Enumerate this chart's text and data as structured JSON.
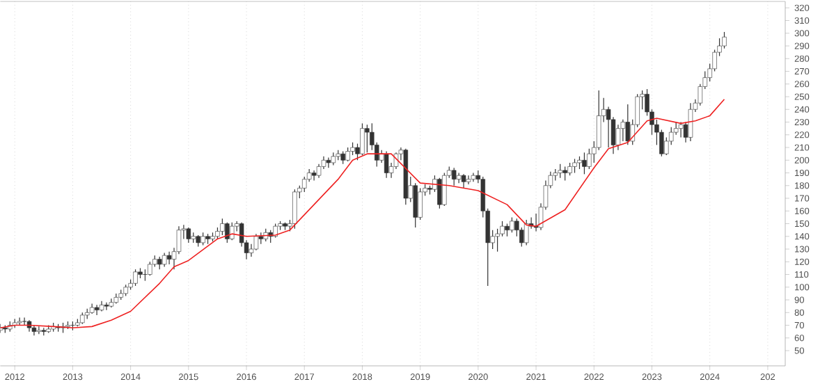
{
  "chart_data": {
    "type": "candlestick",
    "color": "#333333",
    "grid": "x",
    "xlim": [
      "2011-10-01",
      "2025-04-20"
    ],
    "ylim": [
      38,
      325
    ],
    "xticks": [
      "2012",
      "2013",
      "2014",
      "2015",
      "2016",
      "2017",
      "2018",
      "2019",
      "2020",
      "2021",
      "2022",
      "2023",
      "2024",
      {
        "value": "2025",
        "label": "202"
      }
    ],
    "yticks": [
      50,
      60,
      70,
      80,
      90,
      100,
      110,
      120,
      130,
      140,
      150,
      160,
      170,
      180,
      190,
      200,
      210,
      220,
      230,
      240,
      250,
      260,
      270,
      280,
      290,
      300,
      310,
      320
    ],
    "x": [
      "2011-10",
      "2011-11",
      "2011-12",
      "2012-01",
      "2012-02",
      "2012-03",
      "2012-04",
      "2012-05",
      "2012-06",
      "2012-07",
      "2012-08",
      "2012-09",
      "2012-10",
      "2012-11",
      "2012-12",
      "2013-01",
      "2013-02",
      "2013-03",
      "2013-04",
      "2013-05",
      "2013-06",
      "2013-07",
      "2013-08",
      "2013-09",
      "2013-10",
      "2013-11",
      "2013-12",
      "2014-01",
      "2014-02",
      "2014-03",
      "2014-04",
      "2014-05",
      "2014-06",
      "2014-07",
      "2014-08",
      "2014-09",
      "2014-10",
      "2014-11",
      "2014-12",
      "2015-01",
      "2015-02",
      "2015-03",
      "2015-04",
      "2015-05",
      "2015-06",
      "2015-07",
      "2015-08",
      "2015-09",
      "2015-10",
      "2015-11",
      "2015-12",
      "2016-01",
      "2016-02",
      "2016-03",
      "2016-04",
      "2016-05",
      "2016-06",
      "2016-07",
      "2016-08",
      "2016-09",
      "2016-10",
      "2016-11",
      "2016-12",
      "2017-01",
      "2017-02",
      "2017-03",
      "2017-04",
      "2017-05",
      "2017-06",
      "2017-07",
      "2017-08",
      "2017-09",
      "2017-10",
      "2017-11",
      "2017-12",
      "2018-01",
      "2018-02",
      "2018-03",
      "2018-04",
      "2018-05",
      "2018-06",
      "2018-07",
      "2018-08",
      "2018-09",
      "2018-10",
      "2018-11",
      "2018-12",
      "2019-01",
      "2019-02",
      "2019-03",
      "2019-04",
      "2019-05",
      "2019-06",
      "2019-07",
      "2019-08",
      "2019-09",
      "2019-10",
      "2019-11",
      "2019-12",
      "2020-01",
      "2020-02",
      "2020-03",
      "2020-04",
      "2020-05",
      "2020-06",
      "2020-07",
      "2020-08",
      "2020-09",
      "2020-10",
      "2020-11",
      "2020-12",
      "2021-01",
      "2021-02",
      "2021-03",
      "2021-04",
      "2021-05",
      "2021-06",
      "2021-07",
      "2021-08",
      "2021-09",
      "2021-10",
      "2021-11",
      "2021-12",
      "2022-01",
      "2022-02",
      "2022-03",
      "2022-04",
      "2022-05",
      "2022-06",
      "2022-07",
      "2022-08",
      "2022-09",
      "2022-10",
      "2022-11",
      "2022-12",
      "2023-01",
      "2023-02",
      "2023-03",
      "2023-04",
      "2023-05",
      "2023-06",
      "2023-07",
      "2023-08",
      "2023-09",
      "2023-10",
      "2023-11",
      "2023-12",
      "2024-01",
      "2024-02",
      "2024-03",
      "2024-04"
    ],
    "ohlc": [
      [
        66,
        71,
        64,
        68
      ],
      [
        68,
        70,
        64,
        67
      ],
      [
        67,
        73,
        65,
        70
      ],
      [
        70,
        75,
        68,
        72
      ],
      [
        72,
        76,
        70,
        73
      ],
      [
        73,
        76,
        70,
        73
      ],
      [
        73,
        74,
        65,
        68
      ],
      [
        68,
        70,
        62,
        65
      ],
      [
        65,
        69,
        63,
        66
      ],
      [
        66,
        68,
        62,
        65
      ],
      [
        65,
        70,
        64,
        67
      ],
      [
        67,
        72,
        65,
        69
      ],
      [
        69,
        71,
        65,
        68
      ],
      [
        68,
        72,
        64,
        69
      ],
      [
        69,
        73,
        67,
        70
      ],
      [
        70,
        73,
        66,
        70
      ],
      [
        70,
        75,
        69,
        72
      ],
      [
        72,
        80,
        71,
        78
      ],
      [
        78,
        83,
        75,
        80
      ],
      [
        80,
        87,
        79,
        84
      ],
      [
        84,
        86,
        78,
        82
      ],
      [
        82,
        89,
        81,
        86
      ],
      [
        86,
        88,
        82,
        85
      ],
      [
        85,
        91,
        84,
        88
      ],
      [
        88,
        95,
        87,
        92
      ],
      [
        92,
        98,
        90,
        95
      ],
      [
        95,
        102,
        93,
        100
      ],
      [
        100,
        106,
        98,
        103
      ],
      [
        103,
        114,
        101,
        112
      ],
      [
        112,
        115,
        107,
        110
      ],
      [
        110,
        114,
        105,
        110
      ],
      [
        110,
        120,
        109,
        118
      ],
      [
        118,
        125,
        116,
        122
      ],
      [
        122,
        124,
        114,
        118
      ],
      [
        118,
        127,
        116,
        125
      ],
      [
        125,
        128,
        118,
        122
      ],
      [
        122,
        131,
        114,
        128
      ],
      [
        128,
        148,
        126,
        145
      ],
      [
        145,
        149,
        138,
        146
      ],
      [
        146,
        147,
        135,
        138
      ],
      [
        138,
        143,
        135,
        140
      ],
      [
        140,
        141,
        132,
        135
      ],
      [
        135,
        143,
        133,
        140
      ],
      [
        140,
        142,
        134,
        138
      ],
      [
        138,
        143,
        136,
        140
      ],
      [
        140,
        147,
        138,
        144
      ],
      [
        144,
        154,
        141,
        150
      ],
      [
        150,
        151,
        135,
        138
      ],
      [
        138,
        151,
        137,
        148
      ],
      [
        148,
        152,
        144,
        150
      ],
      [
        150,
        151,
        132,
        135
      ],
      [
        135,
        137,
        122,
        127
      ],
      [
        127,
        134,
        124,
        130
      ],
      [
        130,
        142,
        129,
        140
      ],
      [
        140,
        143,
        134,
        138
      ],
      [
        138,
        146,
        136,
        143
      ],
      [
        143,
        145,
        135,
        140
      ],
      [
        140,
        150,
        139,
        148
      ],
      [
        148,
        152,
        145,
        150
      ],
      [
        150,
        151,
        145,
        148
      ],
      [
        148,
        153,
        144,
        150
      ],
      [
        150,
        177,
        146,
        175
      ],
      [
        175,
        180,
        170,
        178
      ],
      [
        178,
        187,
        175,
        185
      ],
      [
        185,
        193,
        183,
        190
      ],
      [
        190,
        192,
        184,
        188
      ],
      [
        188,
        197,
        186,
        195
      ],
      [
        195,
        203,
        193,
        200
      ],
      [
        200,
        202,
        194,
        198
      ],
      [
        198,
        206,
        196,
        203
      ],
      [
        203,
        208,
        200,
        205
      ],
      [
        205,
        207,
        197,
        200
      ],
      [
        200,
        210,
        199,
        207
      ],
      [
        207,
        214,
        204,
        210
      ],
      [
        210,
        213,
        200,
        205
      ],
      [
        205,
        229,
        204,
        225
      ],
      [
        225,
        228,
        206,
        222
      ],
      [
        222,
        229,
        208,
        212
      ],
      [
        212,
        214,
        195,
        200
      ],
      [
        200,
        208,
        198,
        205
      ],
      [
        205,
        207,
        186,
        190
      ],
      [
        190,
        198,
        186,
        195
      ],
      [
        195,
        206,
        193,
        205
      ],
      [
        205,
        210,
        200,
        208
      ],
      [
        208,
        209,
        165,
        170
      ],
      [
        170,
        187,
        167,
        180
      ],
      [
        180,
        182,
        147,
        155
      ],
      [
        155,
        178,
        153,
        175
      ],
      [
        175,
        181,
        172,
        178
      ],
      [
        178,
        180,
        173,
        177
      ],
      [
        177,
        188,
        175,
        185
      ],
      [
        185,
        186,
        162,
        165
      ],
      [
        165,
        190,
        164,
        188
      ],
      [
        188,
        195,
        186,
        192
      ],
      [
        192,
        194,
        180,
        185
      ],
      [
        185,
        190,
        182,
        188
      ],
      [
        188,
        189,
        178,
        183
      ],
      [
        183,
        188,
        181,
        185
      ],
      [
        185,
        190,
        183,
        188
      ],
      [
        188,
        192,
        182,
        185
      ],
      [
        185,
        187,
        155,
        160
      ],
      [
        160,
        162,
        101,
        135
      ],
      [
        135,
        145,
        130,
        140
      ],
      [
        140,
        146,
        128,
        142
      ],
      [
        142,
        152,
        140,
        148
      ],
      [
        148,
        150,
        140,
        145
      ],
      [
        145,
        155,
        143,
        152
      ],
      [
        152,
        154,
        140,
        145
      ],
      [
        145,
        147,
        132,
        135
      ],
      [
        135,
        153,
        133,
        150
      ],
      [
        150,
        155,
        146,
        148
      ],
      [
        148,
        158,
        144,
        147
      ],
      [
        147,
        166,
        145,
        163
      ],
      [
        163,
        184,
        161,
        180
      ],
      [
        180,
        191,
        178,
        188
      ],
      [
        188,
        193,
        184,
        190
      ],
      [
        190,
        197,
        186,
        192
      ],
      [
        192,
        195,
        184,
        190
      ],
      [
        190,
        198,
        188,
        195
      ],
      [
        195,
        201,
        190,
        198
      ],
      [
        198,
        203,
        193,
        200
      ],
      [
        200,
        206,
        189,
        195
      ],
      [
        195,
        209,
        193,
        205
      ],
      [
        205,
        215,
        198,
        210
      ],
      [
        210,
        255,
        208,
        235
      ],
      [
        235,
        249,
        230,
        240
      ],
      [
        240,
        242,
        210,
        232
      ],
      [
        232,
        234,
        205,
        212
      ],
      [
        212,
        228,
        208,
        225
      ],
      [
        225,
        232,
        215,
        230
      ],
      [
        230,
        244,
        212,
        215
      ],
      [
        215,
        232,
        212,
        228
      ],
      [
        228,
        252,
        226,
        250
      ],
      [
        250,
        255,
        240,
        252
      ],
      [
        252,
        256,
        235,
        238
      ],
      [
        238,
        240,
        220,
        228
      ],
      [
        228,
        232,
        212,
        222
      ],
      [
        222,
        224,
        203,
        205
      ],
      [
        205,
        218,
        204,
        215
      ],
      [
        215,
        226,
        212,
        222
      ],
      [
        222,
        230,
        220,
        225
      ],
      [
        225,
        230,
        218,
        228
      ],
      [
        228,
        230,
        214,
        218
      ],
      [
        218,
        245,
        215,
        240
      ],
      [
        240,
        248,
        238,
        245
      ],
      [
        245,
        260,
        243,
        258
      ],
      [
        258,
        270,
        256,
        265
      ],
      [
        265,
        276,
        262,
        272
      ],
      [
        272,
        287,
        270,
        285
      ],
      [
        285,
        296,
        282,
        290
      ],
      [
        290,
        301,
        288,
        297
      ]
    ],
    "series": [
      {
        "type": "line",
        "color": "#ee2222",
        "x": [
          "2011-10",
          "2012-01",
          "2012-04",
          "2012-09",
          "2013-01",
          "2013-05",
          "2013-09",
          "2014-01",
          "2014-07",
          "2014-10",
          "2015-01",
          "2015-07",
          "2015-10",
          "2016-01",
          "2016-07",
          "2016-10",
          "2017-03",
          "2017-08",
          "2017-11",
          "2018-02",
          "2018-07",
          "2019-01",
          "2019-07",
          "2020-01",
          "2020-07",
          "2020-11",
          "2021-01",
          "2021-07",
          "2022-01",
          "2022-04",
          "2022-08",
          "2022-12",
          "2023-02",
          "2023-07",
          "2023-10",
          "2024-01",
          "2024-04"
        ],
        "values": [
          68,
          70,
          70,
          69,
          68,
          69,
          74,
          81,
          103,
          116,
          121,
          138,
          142,
          140,
          141,
          145,
          165,
          185,
          200,
          205,
          205,
          182,
          180,
          176,
          165,
          149,
          148,
          161,
          194,
          209,
          214,
          231,
          233,
          229,
          231,
          235,
          248
        ]
      }
    ]
  }
}
